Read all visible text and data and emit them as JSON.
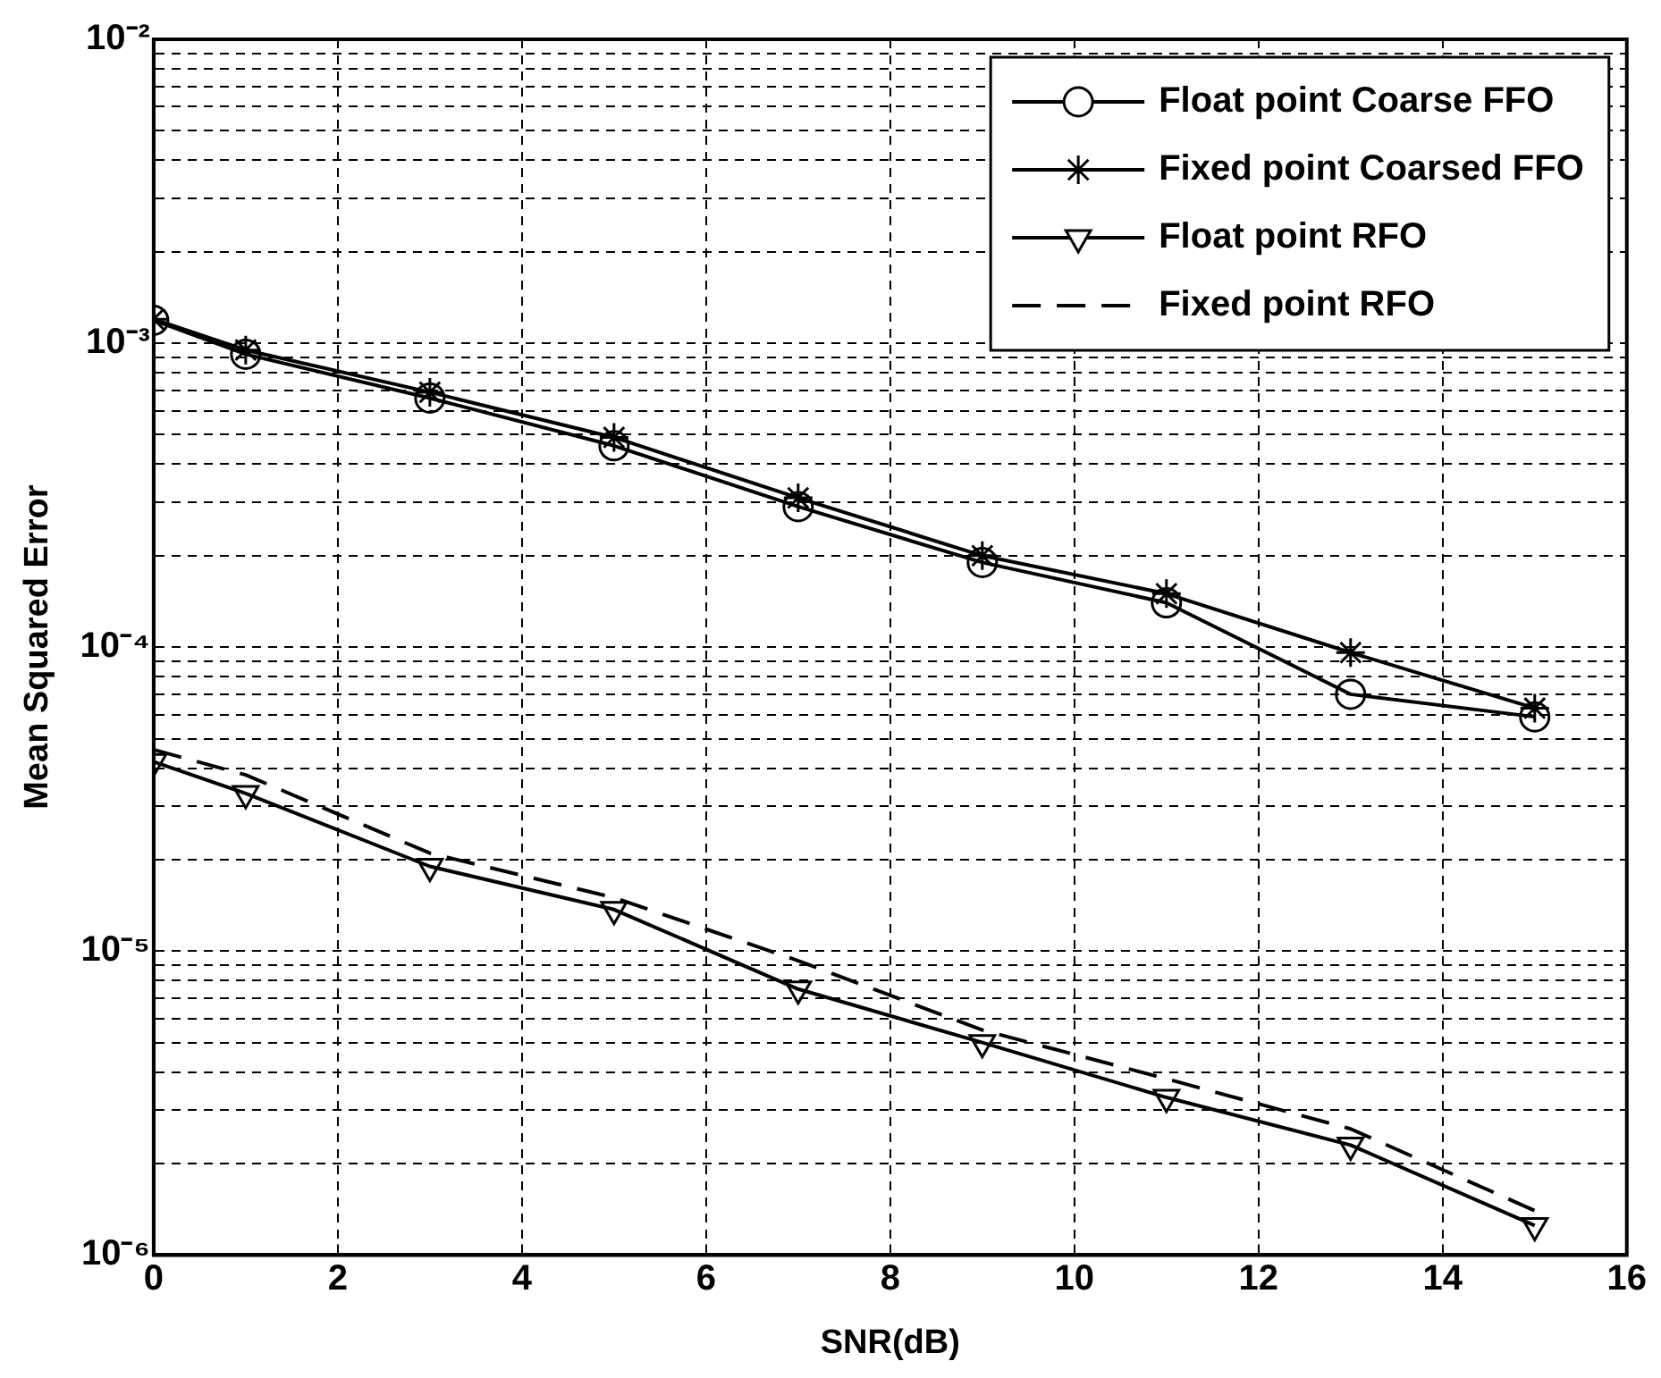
{
  "chart_data": {
    "type": "line",
    "xlabel": "SNR(dB)",
    "ylabel": "Mean Squared Error",
    "log": "y",
    "grid": true,
    "legend": "top right",
    "xlim": [
      0,
      16
    ],
    "xticks": [
      0,
      2,
      4,
      6,
      8,
      10,
      12,
      14,
      16
    ],
    "ylim": [
      1e-06,
      0.01
    ],
    "yticks": [
      {
        "value": 1e-06,
        "label": "10⁻⁶"
      },
      {
        "value": 2e-06,
        "label": null
      },
      {
        "value": 3e-06,
        "label": null
      },
      {
        "value": 4e-06,
        "label": null
      },
      {
        "value": 5e-06,
        "label": null
      },
      {
        "value": 6e-06,
        "label": null
      },
      {
        "value": 7e-06,
        "label": null
      },
      {
        "value": 8e-06,
        "label": null
      },
      {
        "value": 9e-06,
        "label": null
      },
      {
        "value": 1e-05,
        "label": "10⁻⁵"
      },
      {
        "value": 2e-05,
        "label": null
      },
      {
        "value": 3e-05,
        "label": null
      },
      {
        "value": 4e-05,
        "label": null
      },
      {
        "value": 5e-05,
        "label": null
      },
      {
        "value": 6e-05,
        "label": null
      },
      {
        "value": 7e-05,
        "label": null
      },
      {
        "value": 8e-05,
        "label": null
      },
      {
        "value": 9e-05,
        "label": null
      },
      {
        "value": 0.0001,
        "label": "10⁻⁴"
      },
      {
        "value": 0.0002,
        "label": null
      },
      {
        "value": 0.0003,
        "label": null
      },
      {
        "value": 0.0004,
        "label": null
      },
      {
        "value": 0.0005,
        "label": null
      },
      {
        "value": 0.0006,
        "label": null
      },
      {
        "value": 0.0007,
        "label": null
      },
      {
        "value": 0.0008,
        "label": null
      },
      {
        "value": 0.0009,
        "label": null
      },
      {
        "value": 0.001,
        "label": "10⁻³"
      },
      {
        "value": 0.002,
        "label": null
      },
      {
        "value": 0.003,
        "label": null
      },
      {
        "value": 0.004,
        "label": null
      },
      {
        "value": 0.005,
        "label": null
      },
      {
        "value": 0.006,
        "label": null
      },
      {
        "value": 0.007,
        "label": null
      },
      {
        "value": 0.008,
        "label": null
      },
      {
        "value": 0.009,
        "label": null
      },
      {
        "value": 0.01,
        "label": "10⁻²"
      }
    ],
    "x": [
      0,
      1,
      3,
      5,
      7,
      9,
      11,
      13,
      15
    ],
    "series": [
      {
        "name": "Float point Coarse FFO",
        "color": "#000000",
        "marker": "circle",
        "line_style": "solid",
        "values": [
          0.00119,
          0.00092,
          0.00066,
          0.00046,
          0.00029,
          0.00019,
          0.00014,
          7e-05,
          5.9e-05
        ]
      },
      {
        "name": "Fixed point Coarsed FFO",
        "color": "#000000",
        "marker": "cross",
        "line_style": "solid",
        "values": [
          0.0012,
          0.00095,
          0.00069,
          0.00049,
          0.00031,
          0.0002,
          0.00015,
          9.6e-05,
          6.3e-05
        ]
      },
      {
        "name": "Float point RFO",
        "color": "#000000",
        "marker": "triangle",
        "line_style": "solid",
        "values": [
          4.2e-05,
          3.3e-05,
          1.9e-05,
          1.37e-05,
          7.5e-06,
          5e-06,
          3.3e-06,
          2.3e-06,
          1.25e-06
        ]
      },
      {
        "name": "Fixed point RFO",
        "color": "#000000",
        "marker": "none",
        "line_style": "dashed",
        "values": [
          4.6e-05,
          3.8e-05,
          2.1e-05,
          1.5e-05,
          9.3e-06,
          5.5e-06,
          3.8e-06,
          2.6e-06,
          1.4e-06
        ]
      }
    ]
  }
}
